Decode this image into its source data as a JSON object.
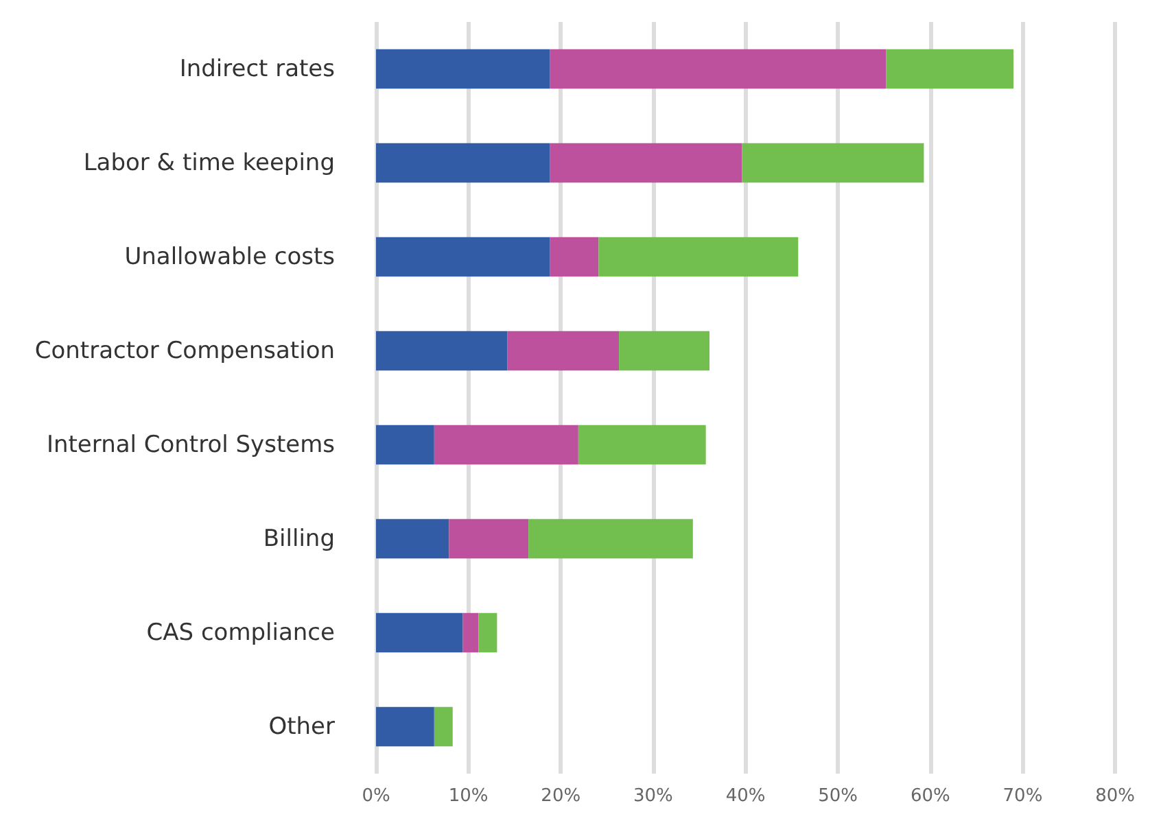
{
  "chart_data": {
    "type": "bar",
    "orientation": "horizontal",
    "stacked": true,
    "grid": "x",
    "categories": [
      "Indirect rates",
      "Labor & time keeping",
      "Unallowable costs",
      "Contractor Compensation",
      "Internal Control Systems",
      "Billing",
      "CAS compliance",
      "Other"
    ],
    "series": [
      {
        "color": "#325ca6",
        "values": [
          18.8,
          18.8,
          18.8,
          14.2,
          6.3,
          7.9,
          9.4,
          6.3
        ]
      },
      {
        "color": "#bd519d",
        "values": [
          36.4,
          20.8,
          5.3,
          12.1,
          15.6,
          8.6,
          1.7,
          0
        ]
      },
      {
        "color": "#72bf50",
        "values": [
          13.8,
          19.7,
          21.6,
          9.8,
          13.8,
          17.8,
          2.0,
          2.0
        ]
      }
    ],
    "xlim": [
      0,
      80
    ],
    "xticks": [
      {
        "value": 0,
        "label": "0%"
      },
      {
        "value": 10,
        "label": "10%"
      },
      {
        "value": 20,
        "label": "20%"
      },
      {
        "value": 30,
        "label": "30%"
      },
      {
        "value": 40,
        "label": "40%"
      },
      {
        "value": 50,
        "label": "50%"
      },
      {
        "value": 60,
        "label": "60%"
      },
      {
        "value": 70,
        "label": "70%"
      },
      {
        "value": 80,
        "label": "80%"
      }
    ]
  }
}
